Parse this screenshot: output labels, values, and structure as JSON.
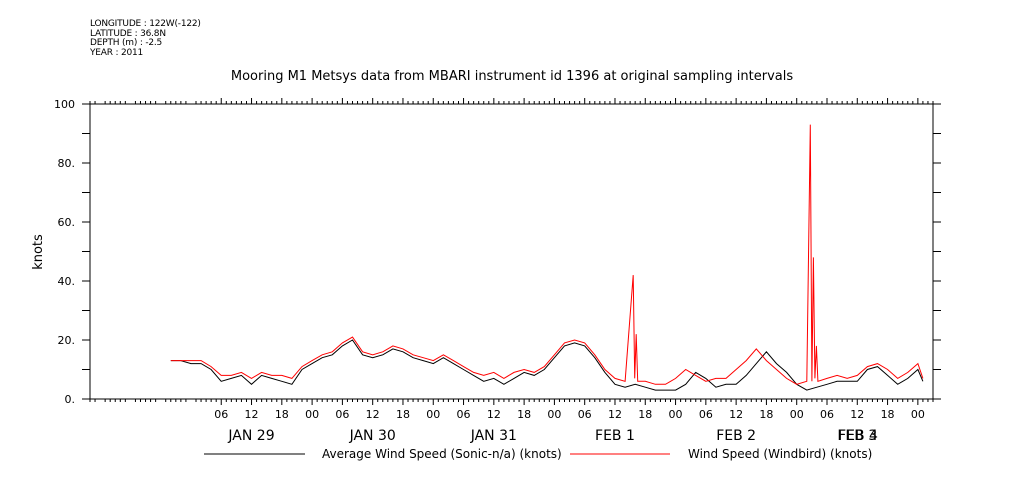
{
  "metadata": [
    "LONGITUDE : 122W(-122)",
    "LATITUDE : 36.8N",
    "DEPTH (m) : -2.5",
    "YEAR : 2011"
  ],
  "chart_data": {
    "type": "line",
    "title": "Mooring M1 Metsys data from MBARI instrument id 1396 at original sampling intervals",
    "ylabel": "knots",
    "xlabel": "",
    "ylim": [
      0,
      100
    ],
    "yticks": [
      0,
      20,
      40,
      60,
      80,
      100
    ],
    "ytick_labels": [
      "0.",
      "20.",
      "40.",
      "60.",
      "80.",
      "100"
    ],
    "x_unit": "hours since JAN 29 00:00",
    "xlim": [
      -20,
      147
    ],
    "xticks": [
      6,
      12,
      18,
      24,
      30,
      36,
      42,
      48,
      54,
      60,
      66,
      72,
      78,
      84,
      90,
      96,
      102,
      108,
      114,
      120,
      126,
      132,
      138,
      144
    ],
    "xtick_labels": [
      "06",
      "12",
      "18",
      "00",
      "06",
      "12",
      "18",
      "00",
      "06",
      "12",
      "18",
      "00",
      "06",
      "12",
      "18",
      "00",
      "06",
      "12",
      "18",
      "00",
      "06",
      "12",
      "18",
      "00"
    ],
    "day_labels": [
      {
        "label": "JAN 29",
        "hour": 12
      },
      {
        "label": "JAN 30",
        "hour": 36
      },
      {
        "label": "JAN 31",
        "hour": 60
      },
      {
        "label": "FEB  1",
        "hour": 84
      },
      {
        "label": "FEB  2",
        "hour": 108
      },
      {
        "label": "FEB  3",
        "hour": 132
      },
      {
        "label": "FEB  4",
        "hour": 156
      }
    ],
    "series": [
      {
        "name": "Average Wind Speed (Sonic-n/a) (knots)",
        "color": "#000000",
        "x": [
          -4,
          -2,
          0,
          2,
          4,
          6,
          8,
          10,
          12,
          14,
          16,
          18,
          20,
          22,
          24,
          26,
          28,
          30,
          32,
          34,
          36,
          38,
          40,
          42,
          44,
          46,
          48,
          50,
          52,
          54,
          56,
          58,
          60,
          62,
          64,
          66,
          68,
          70,
          72,
          74,
          76,
          78,
          80,
          82,
          84,
          86,
          88,
          90,
          92,
          94,
          96,
          98,
          100,
          102,
          104,
          106,
          108,
          110,
          112,
          114,
          116,
          118,
          120,
          122,
          124,
          126,
          128,
          130,
          132,
          134,
          136,
          138,
          140,
          142,
          144,
          145
        ],
        "y": [
          13,
          13,
          12,
          12,
          10,
          6,
          7,
          8,
          5,
          8,
          7,
          6,
          5,
          10,
          12,
          14,
          15,
          18,
          20,
          15,
          14,
          15,
          17,
          16,
          14,
          13,
          12,
          14,
          12,
          10,
          8,
          6,
          7,
          5,
          7,
          9,
          8,
          10,
          14,
          18,
          19,
          18,
          14,
          9,
          5,
          4,
          5,
          4,
          3,
          3,
          3,
          5,
          9,
          7,
          4,
          5,
          5,
          8,
          12,
          16,
          12,
          9,
          5,
          3,
          4,
          5,
          6,
          6,
          6,
          10,
          11,
          8,
          5,
          7,
          10,
          6
        ]
      },
      {
        "name": "Wind Speed (Windbird) (knots)",
        "color": "#ff0000",
        "x": [
          -4,
          -2,
          0,
          2,
          4,
          6,
          8,
          10,
          12,
          14,
          16,
          18,
          20,
          22,
          24,
          26,
          28,
          30,
          32,
          34,
          36,
          38,
          40,
          42,
          44,
          46,
          48,
          50,
          52,
          54,
          56,
          58,
          60,
          62,
          64,
          66,
          68,
          70,
          72,
          74,
          76,
          78,
          80,
          82,
          84,
          86,
          87.6,
          87.9,
          88.2,
          88.5,
          90,
          92,
          94,
          96,
          98,
          100,
          102,
          104,
          106,
          108,
          110,
          112,
          114,
          116,
          118,
          120,
          122,
          122.7,
          123.0,
          123.3,
          123.6,
          123.9,
          124.2,
          126,
          128,
          130,
          132,
          134,
          136,
          138,
          140,
          142,
          144,
          145
        ],
        "y": [
          13,
          13,
          13,
          13,
          11,
          8,
          8,
          9,
          7,
          9,
          8,
          8,
          7,
          11,
          13,
          15,
          16,
          19,
          21,
          16,
          15,
          16,
          18,
          17,
          15,
          14,
          13,
          15,
          13,
          11,
          9,
          8,
          9,
          7,
          9,
          10,
          9,
          11,
          15,
          19,
          20,
          19,
          15,
          10,
          7,
          6,
          42,
          7,
          22,
          6,
          6,
          5,
          5,
          7,
          10,
          8,
          6,
          7,
          7,
          10,
          13,
          17,
          13,
          10,
          7,
          5,
          6,
          93,
          6,
          48,
          7,
          18,
          6,
          7,
          8,
          7,
          8,
          11,
          12,
          10,
          7,
          9,
          12,
          7
        ]
      }
    ],
    "legend_placement": "bottom",
    "grid": false
  }
}
